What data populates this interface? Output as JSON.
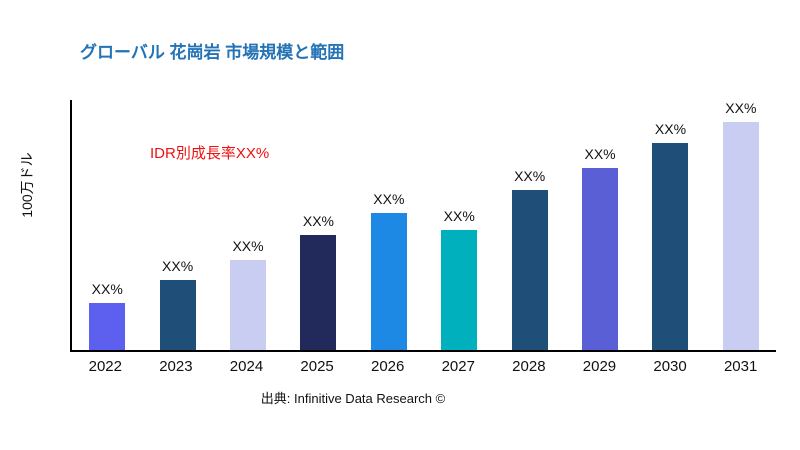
{
  "header": {
    "title": "グローバル 花崗岩 市場規模と範囲"
  },
  "annotation": {
    "growth_note": "IDR別成長率XX%",
    "color": "#ee1111"
  },
  "footer": {
    "source": "出典: Infinitive Data Research ©"
  },
  "colors": {
    "title": "#2373b6",
    "axis": "#000000",
    "background": "#ffffff"
  },
  "chart_data": {
    "type": "bar",
    "title": "グローバル 花崗岩 市場規模と範囲",
    "xlabel": "",
    "ylabel": "100万ドル",
    "categories": [
      "2022",
      "2023",
      "2024",
      "2025",
      "2026",
      "2027",
      "2028",
      "2029",
      "2030",
      "2031"
    ],
    "values": [
      19,
      28,
      36,
      46,
      55,
      48,
      64,
      73,
      83,
      92
    ],
    "bar_labels": [
      "XX%",
      "XX%",
      "XX%",
      "XX%",
      "XX%",
      "XX%",
      "XX%",
      "XX%",
      "XX%",
      "XX%"
    ],
    "bar_colors": [
      "#5d5fef",
      "#1f4e79",
      "#c9cdf2",
      "#212a5a",
      "#1e88e5",
      "#00b0bd",
      "#1f4e79",
      "#5a5fd6",
      "#1f4e79",
      "#c9cdf2"
    ],
    "ylim": [
      0,
      100
    ],
    "grid": false,
    "legend": "none",
    "annotations": [
      "IDR別成長率XX%"
    ]
  }
}
